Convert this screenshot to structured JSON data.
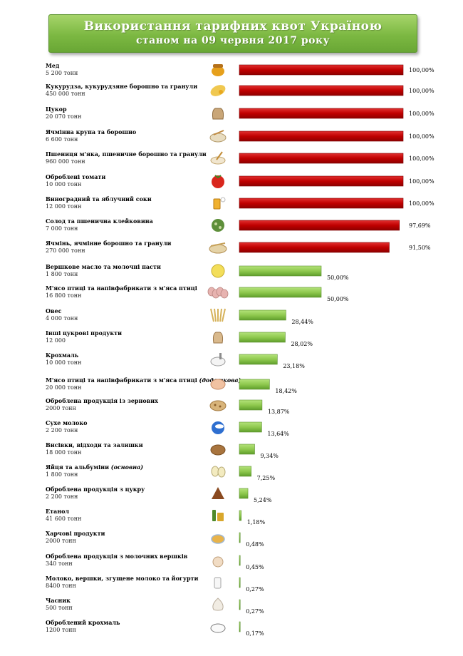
{
  "header": {
    "title": "Використання тарифних квот Україною",
    "subtitle": "станом на 09 червня 2017 року"
  },
  "colors": {
    "full": "#c00000",
    "partial": "#8fc94f",
    "banner": "#7cb842"
  },
  "chart_data": {
    "type": "bar",
    "orientation": "horizontal",
    "xlim": [
      0,
      100
    ],
    "unit": "%",
    "grid": false,
    "legend": "none",
    "rows": [
      {
        "name": "Мед",
        "quota": "5 200 тонн",
        "value": 100.0,
        "label": "100,00%",
        "icon": "honey-icon"
      },
      {
        "name": "Кукурудза, кукурудзяне борошно та гранули",
        "quota": "450 000 тонн",
        "value": 100.0,
        "label": "100,00%",
        "icon": "corn-icon"
      },
      {
        "name": "Цукор",
        "quota": "20 070 тонн",
        "value": 100.0,
        "label": "100,00%",
        "icon": "sugar-sack-icon"
      },
      {
        "name": "Ячмінна крупа та борошно",
        "quota": "6 600 тонн",
        "value": 100.0,
        "label": "100,00%",
        "icon": "barley-groats-icon"
      },
      {
        "name": "Пшениця м'яка, пшеничне борошно та гранули",
        "quota": "960 000 тонн",
        "value": 100.0,
        "label": "100,00%",
        "icon": "wheat-flour-icon"
      },
      {
        "name": "Оброблені томати",
        "quota": "10 000 тонн",
        "value": 100.0,
        "label": "100,00%",
        "icon": "tomato-icon"
      },
      {
        "name": "Виноградний та яблучний соки",
        "quota": "12 000 тонн",
        "value": 100.0,
        "label": "100,00%",
        "icon": "juice-icon"
      },
      {
        "name": "Солод та пшенична клейковина",
        "quota": "7 000 тонн",
        "value": 97.69,
        "label": "97,69%",
        "icon": "malt-icon"
      },
      {
        "name": "Ячмінь, ячмінне борошно та гранули",
        "quota": "270 000 тонн",
        "value": 91.5,
        "label": "91,50%",
        "icon": "barley-icon"
      },
      {
        "name": "Вершкове масло та молочні пасти",
        "quota": "1 800 тонн",
        "value": 50.0,
        "label": "50,00%",
        "icon": "butter-icon"
      },
      {
        "name": "М'ясо птиці та напівфабрикати з м'яса птиці",
        "quota": "16 800 тонн",
        "value": 50.0,
        "label": "50,00%",
        "icon": "poultry-icon"
      },
      {
        "name": "Овес",
        "quota": "4 000 тонн",
        "value": 28.44,
        "label": "28,44%",
        "icon": "oats-icon"
      },
      {
        "name": "Інші цукрові продукти",
        "quota": "12 000",
        "value": 28.02,
        "label": "28,02%",
        "icon": "sugar-product-icon"
      },
      {
        "name": "Крохмаль",
        "quota": "10 000 тонн",
        "value": 23.18,
        "label": "23,18%",
        "icon": "starch-icon"
      },
      {
        "name": "М'ясо птиці та напівфабрикати з м'яса птиці",
        "name_note": "(додаткова)",
        "quota": "20 000 тонн",
        "value": 18.42,
        "label": "18,42%",
        "icon": "chicken-icon"
      },
      {
        "name": "Оброблена продукція із зернових",
        "quota": "2000 тонн",
        "value": 13.87,
        "label": "13,87%",
        "icon": "cereal-icon"
      },
      {
        "name": "Сухе молоко",
        "quota": "2 200 тонн",
        "value": 13.64,
        "label": "13,64%",
        "icon": "milk-powder-icon"
      },
      {
        "name": "Висівки, відходи та залишки",
        "quota": "18 000 тонн",
        "value": 9.34,
        "label": "9,34%",
        "icon": "bran-icon"
      },
      {
        "name": "Яйця та альбуміни",
        "name_note": "(основна)",
        "quota": "1 800 тонн",
        "value": 7.25,
        "label": "7,25%",
        "icon": "eggs-icon"
      },
      {
        "name": "Оброблена продукція з цукру",
        "quota": "2 200 тонн",
        "value": 5.24,
        "label": "5,24%",
        "icon": "sugar-processed-icon"
      },
      {
        "name": "Етанол",
        "quota": "41 600 тонн",
        "value": 1.18,
        "label": "1,18%",
        "icon": "ethanol-icon"
      },
      {
        "name": "Харчові продукти",
        "quota": "2000 тонн",
        "value": 0.48,
        "label": "0,48%",
        "icon": "food-icon"
      },
      {
        "name": "Оброблена продукція з молочних вершків",
        "quota": "340 тонн",
        "value": 0.45,
        "label": "0,45%",
        "icon": "cream-icon"
      },
      {
        "name": "Молоко, вершки, згущене молоко та йогурти",
        "quota": "8400 тонн",
        "value": 0.27,
        "label": "0,27%",
        "icon": "milk-icon"
      },
      {
        "name": "Часник",
        "quota": "500 тонн",
        "value": 0.27,
        "label": "0,27%",
        "icon": "garlic-icon"
      },
      {
        "name": "Оброблений крохмаль",
        "quota": "1200 тонн",
        "value": 0.17,
        "label": "0,17%",
        "icon": "processed-starch-icon"
      }
    ]
  }
}
